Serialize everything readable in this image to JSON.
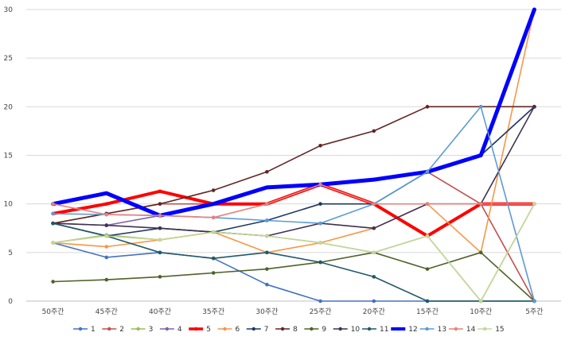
{
  "chart_data": {
    "type": "line",
    "title": "",
    "xlabel": "",
    "ylabel": "",
    "categories": [
      "50주간",
      "45주간",
      "40주간",
      "35주간",
      "30주간",
      "25주간",
      "20주간",
      "15주간",
      "10주간",
      "5주간"
    ],
    "ylim": [
      0,
      30
    ],
    "yticks": [
      0,
      5,
      10,
      15,
      20,
      25,
      30
    ],
    "grid": "horizontal",
    "legend": "bottom",
    "series": [
      {
        "name": "1",
        "color": "#4472C4",
        "values": [
          6,
          4.5,
          5,
          4.4,
          1.7,
          0,
          0,
          0,
          0,
          0
        ]
      },
      {
        "name": "2",
        "color": "#C0504D",
        "values": [
          8,
          9,
          10,
          10,
          11.7,
          12,
          12.5,
          13.3,
          10,
          0
        ]
      },
      {
        "name": "3",
        "color": "#9BBB59",
        "values": [
          6,
          6.8,
          6.3,
          7.1,
          6.7,
          6,
          5,
          6.7,
          0,
          10
        ]
      },
      {
        "name": "4",
        "color": "#8064A2",
        "values": [
          8,
          7.8,
          8.8,
          10,
          11.7,
          12,
          12.5,
          13.3,
          15,
          20
        ]
      },
      {
        "name": "5",
        "color": "#FF0000",
        "values": [
          9,
          10,
          11.3,
          10,
          10,
          12,
          10,
          6.7,
          10,
          10
        ]
      },
      {
        "name": "6",
        "color": "#F79646",
        "values": [
          6,
          5.6,
          6.3,
          7.1,
          5,
          6,
          7.5,
          10,
          5,
          30
        ]
      },
      {
        "name": "7",
        "color": "#1F3864",
        "values": [
          8,
          6.7,
          7.5,
          7.1,
          8.3,
          10,
          10,
          13.3,
          15,
          20
        ]
      },
      {
        "name": "8",
        "color": "#632523",
        "values": [
          8,
          9,
          10,
          11.4,
          13.3,
          16,
          17.5,
          20,
          20,
          20
        ]
      },
      {
        "name": "9",
        "color": "#4F6228",
        "values": [
          2,
          2.2,
          2.5,
          2.9,
          3.3,
          4,
          5,
          3.3,
          5,
          0
        ]
      },
      {
        "name": "10",
        "color": "#3F3151",
        "values": [
          8,
          7.8,
          7.5,
          7.1,
          6.7,
          8,
          7.5,
          10,
          10,
          20
        ]
      },
      {
        "name": "11",
        "color": "#215967",
        "values": [
          8,
          6.7,
          5,
          4.4,
          5,
          4,
          2.5,
          0,
          0,
          0
        ]
      },
      {
        "name": "12",
        "color": "#0000FF",
        "values": [
          10,
          11.1,
          8.8,
          10,
          11.7,
          12,
          12.5,
          13.3,
          15,
          30
        ]
      },
      {
        "name": "13",
        "color": "#5B9BD5",
        "values": [
          9,
          8.9,
          8.8,
          8.6,
          8.3,
          8,
          10,
          13.3,
          20,
          0
        ]
      },
      {
        "name": "14",
        "color": "#E6827F",
        "values": [
          10,
          8.9,
          8.8,
          8.6,
          10,
          12,
          10,
          10,
          10,
          10
        ]
      },
      {
        "name": "15",
        "color": "#C4D79B",
        "values": [
          6,
          6.7,
          6.3,
          7.1,
          6.7,
          6,
          5,
          6.7,
          0,
          10
        ]
      }
    ]
  }
}
